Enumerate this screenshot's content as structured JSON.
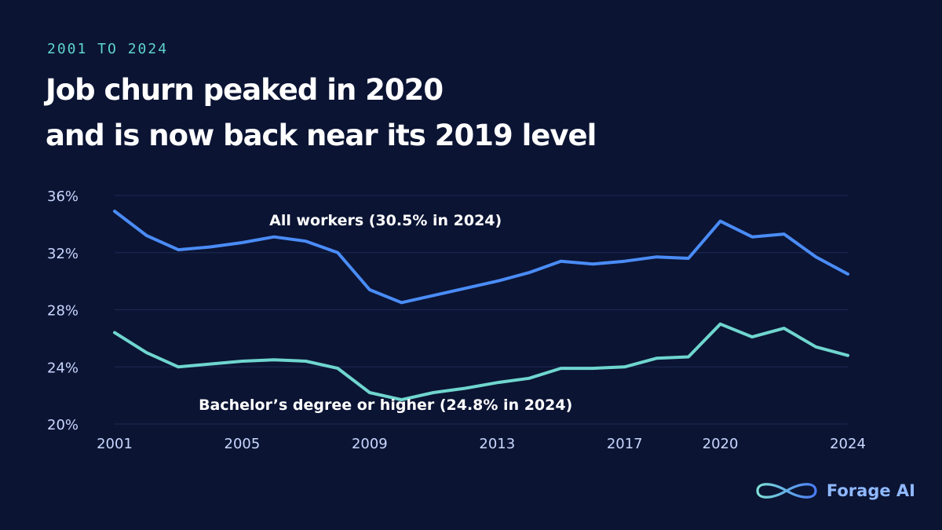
{
  "header": {
    "eyebrow": "2001 TO 2024",
    "title_line1": "Job churn peaked in 2020",
    "title_line2": "and is now back near its 2019 level"
  },
  "brand": {
    "name": "Forage AI",
    "logo_icon": "infinity-logo-icon"
  },
  "colors": {
    "background": "#0b1433",
    "grid": "#1e2a55",
    "axis_text": "#c9d7ff",
    "all_workers": "#4a8cf7",
    "bachelors": "#6fd6cf"
  },
  "chart_data": {
    "type": "line",
    "x": [
      2001,
      2002,
      2003,
      2004,
      2005,
      2006,
      2007,
      2008,
      2009,
      2010,
      2011,
      2012,
      2013,
      2014,
      2015,
      2016,
      2017,
      2018,
      2019,
      2020,
      2021,
      2022,
      2023,
      2024
    ],
    "xticks": [
      "2001",
      "2005",
      "2009",
      "2013",
      "2017",
      "2020",
      "2024"
    ],
    "yticks": [
      "20%",
      "24%",
      "28%",
      "32%",
      "36%"
    ],
    "ylim": [
      20,
      36
    ],
    "xlim": [
      2001,
      2024
    ],
    "grid": true,
    "series": [
      {
        "name": "All workers",
        "label": "All workers (30.5% in 2024)",
        "color_key": "all_workers",
        "values": [
          34.9,
          33.2,
          32.2,
          32.4,
          32.7,
          33.1,
          32.8,
          32.0,
          29.4,
          28.5,
          29.0,
          29.5,
          30.0,
          30.6,
          31.4,
          31.2,
          31.4,
          31.7,
          31.6,
          34.2,
          33.1,
          33.3,
          31.7,
          30.5
        ]
      },
      {
        "name": "Bachelor's degree or higher",
        "label": "Bachelor’s degree or higher (24.8% in 2024)",
        "color_key": "bachelors",
        "values": [
          26.4,
          25.0,
          24.0,
          24.2,
          24.4,
          24.5,
          24.4,
          23.9,
          22.2,
          21.7,
          22.2,
          22.5,
          22.9,
          23.2,
          23.9,
          23.9,
          24.0,
          24.6,
          24.7,
          27.0,
          26.1,
          26.7,
          25.4,
          24.8
        ]
      }
    ]
  }
}
